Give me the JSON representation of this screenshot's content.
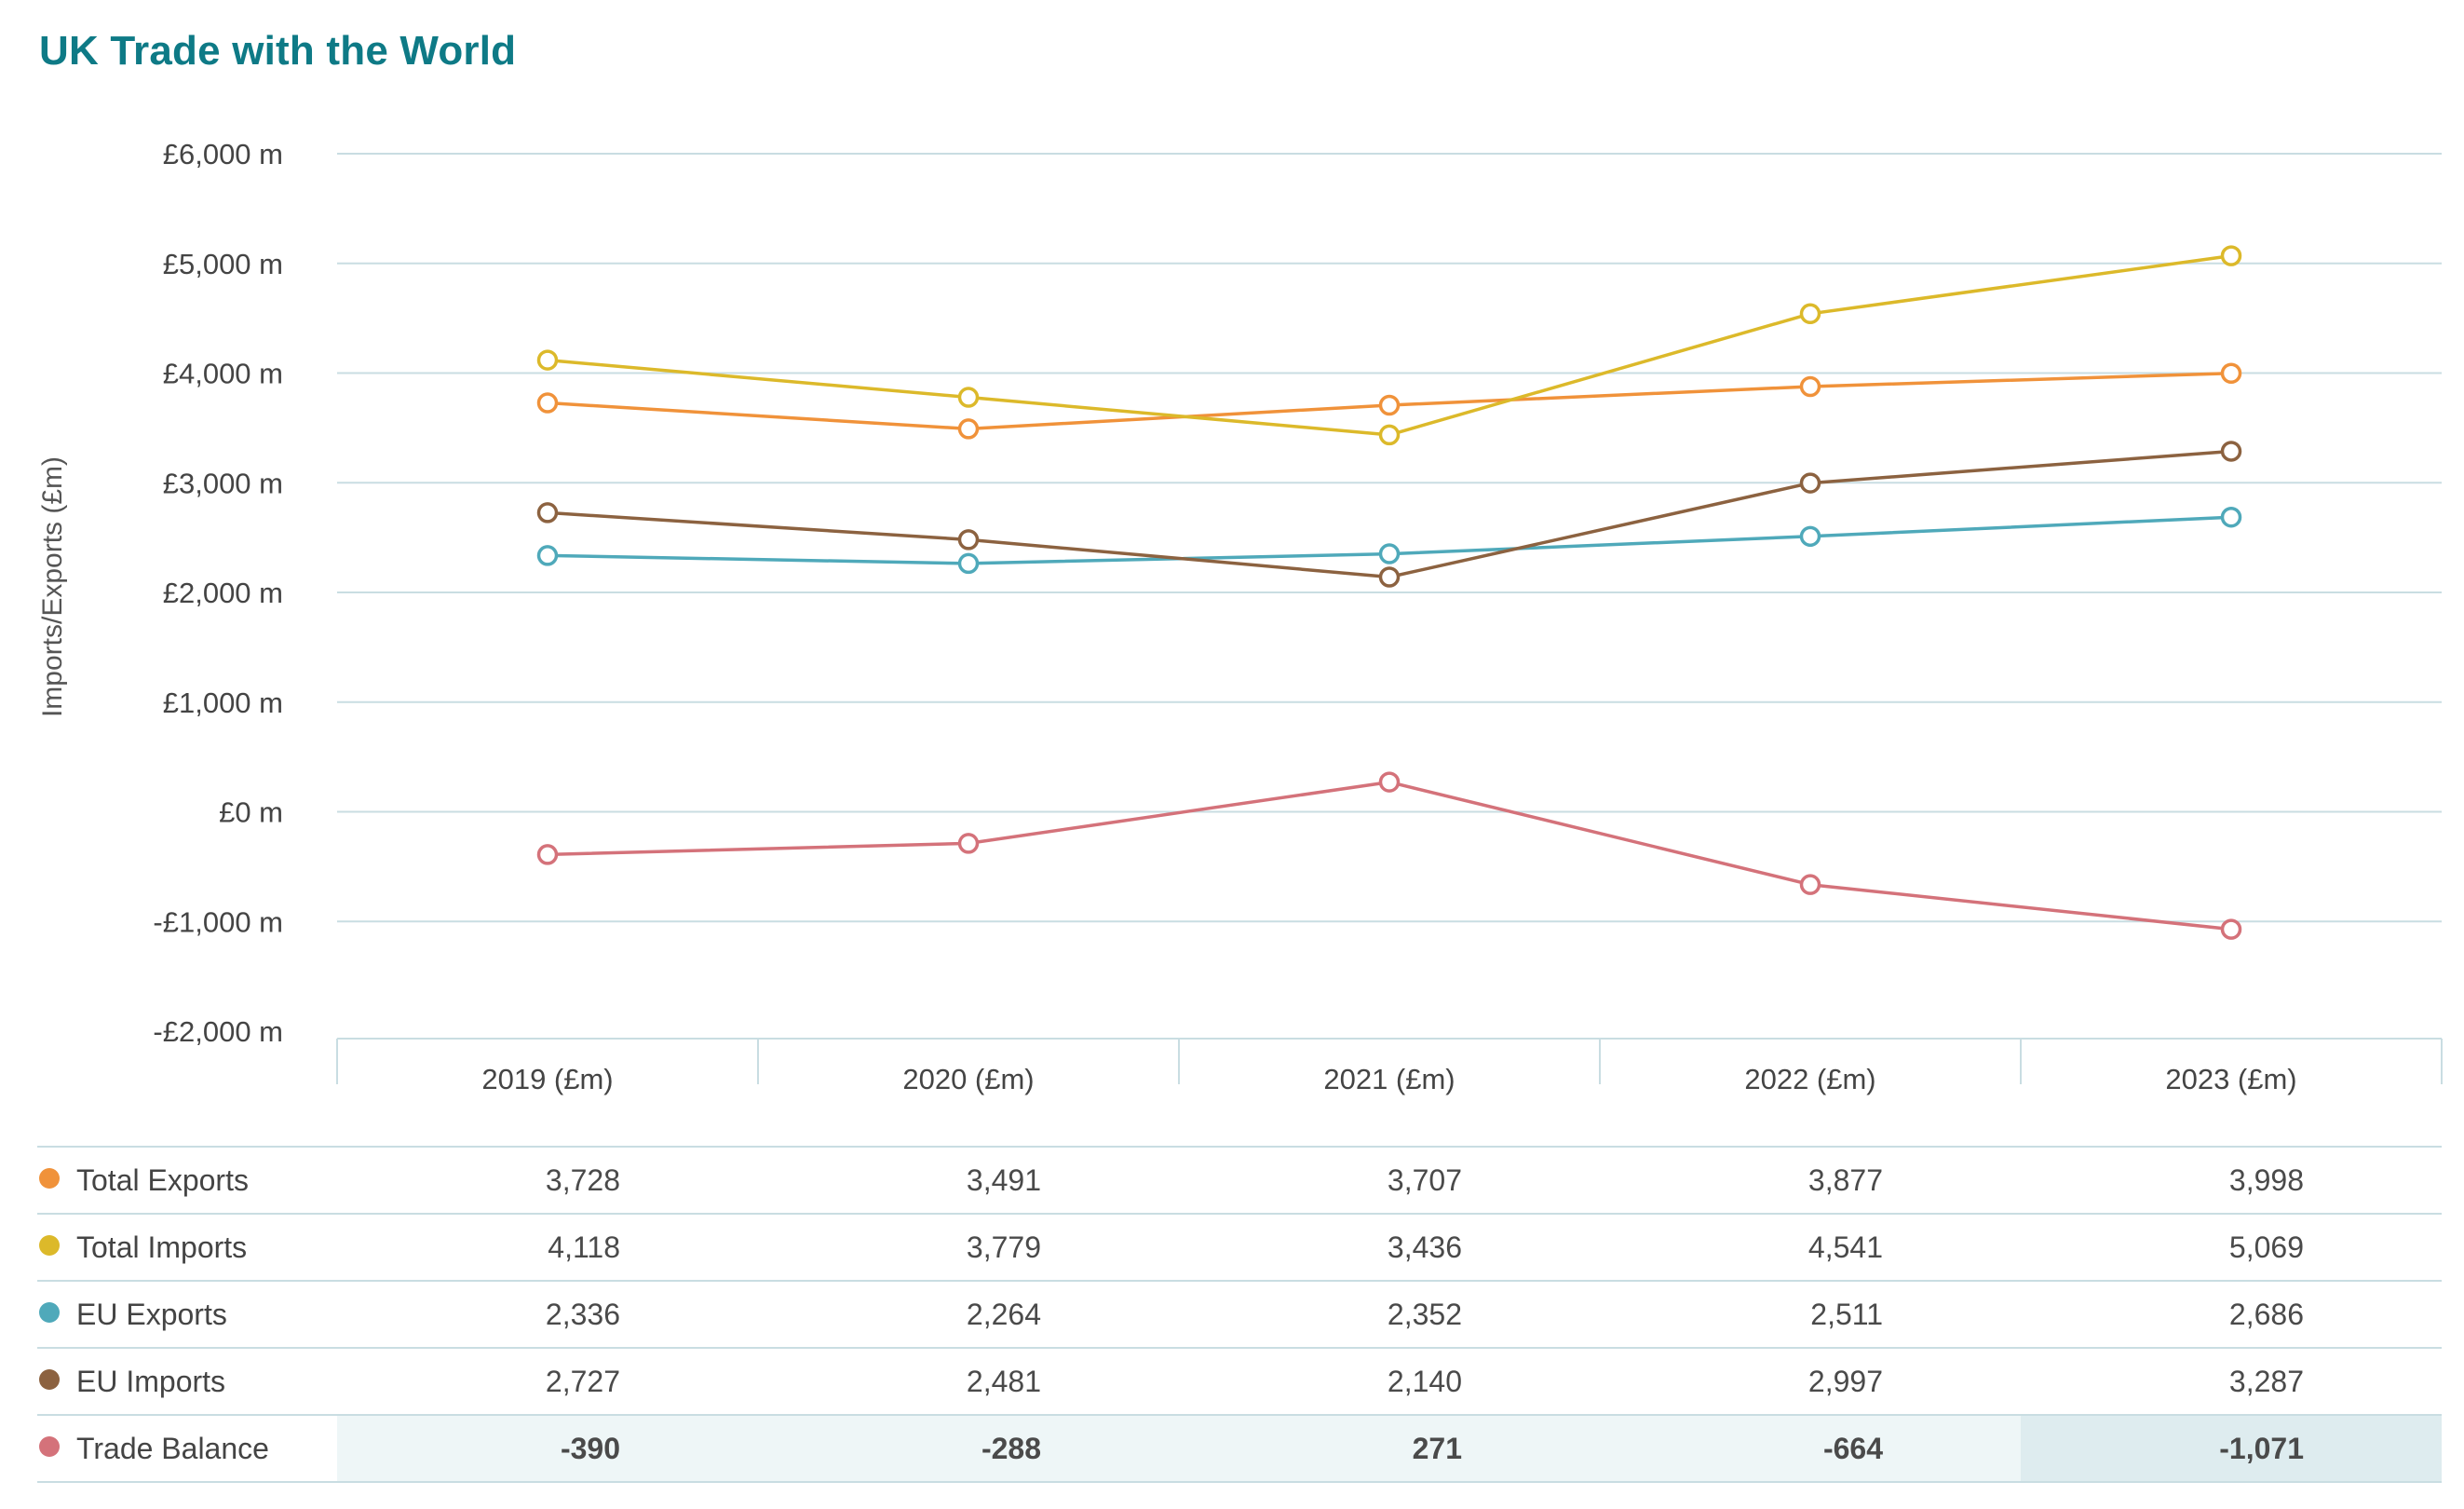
{
  "chart_data": {
    "type": "line",
    "title": "UK Trade with the World",
    "ylabel": "Imports/Exports (£m)",
    "ylim": [
      -2000,
      6000
    ],
    "y_ticks": [
      6000,
      5000,
      4000,
      3000,
      2000,
      1000,
      0,
      -1000,
      -2000
    ],
    "y_tick_labels": [
      "£6,000 m",
      "£5,000 m",
      "£4,000 m",
      "£3,000 m",
      "£2,000 m",
      "£1,000 m",
      "£0 m",
      "-£1,000 m",
      "-£2,000 m"
    ],
    "grid": true,
    "categories": [
      "2019 (£m)",
      "2020 (£m)",
      "2021 (£m)",
      "2022 (£m)",
      "2023 (£m)"
    ],
    "legend_placement": "table-below",
    "series": [
      {
        "name": "Total Exports",
        "color": "#f0923a",
        "values": [
          3728,
          3491,
          3707,
          3877,
          3998
        ],
        "display": [
          "3,728",
          "3,491",
          "3,707",
          "3,877",
          "3,998"
        ]
      },
      {
        "name": "Total Imports",
        "color": "#dcb92a",
        "values": [
          4118,
          3779,
          3436,
          4541,
          5069
        ],
        "display": [
          "4,118",
          "3,779",
          "3,436",
          "4,541",
          "5,069"
        ]
      },
      {
        "name": "EU Exports",
        "color": "#4fa9ba",
        "values": [
          2336,
          2264,
          2352,
          2511,
          2686
        ],
        "display": [
          "2,336",
          "2,264",
          "2,352",
          "2,511",
          "2,686"
        ]
      },
      {
        "name": "EU Imports",
        "color": "#8c6240",
        "values": [
          2727,
          2481,
          2140,
          2997,
          3287
        ],
        "display": [
          "2,727",
          "2,481",
          "2,140",
          "2,997",
          "3,287"
        ]
      },
      {
        "name": "Trade Balance",
        "color": "#d4727a",
        "values": [
          -390,
          -288,
          271,
          -664,
          -1071
        ],
        "display": [
          "-390",
          "-288",
          "271",
          "-664",
          "-1,071"
        ]
      }
    ]
  },
  "colors": {
    "title": "#0e7a86",
    "grid": "#c9dde2",
    "balance_row_bg": "#eef6f7",
    "balance_row_highlight": "#deecef"
  }
}
